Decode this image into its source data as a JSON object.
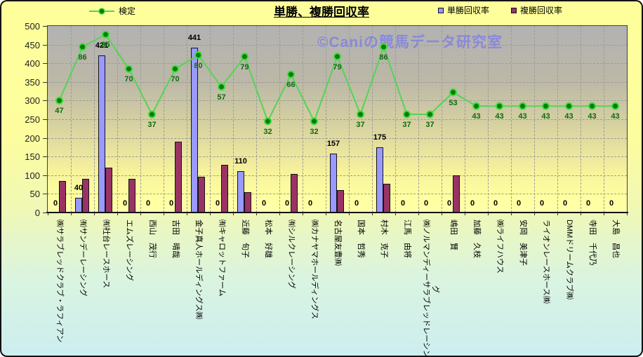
{
  "header": {
    "title": "単勝、複勝回収率",
    "legend_line_label": "検定",
    "legend_tansho_label": "単勝回収率",
    "legend_fukusho_label": "複勝回収率"
  },
  "watermark_text": "©Caniの競馬データ研究室",
  "colors": {
    "tansho_bar": "#9999ff",
    "fukusho_bar": "#993366",
    "kentei_line": "#55d455",
    "kentei_marker_fill": "#0a7d0a",
    "kentei_marker_ring": "#3ddd3d",
    "value_label": "#000000",
    "kentei_label": "#0e6b0e",
    "watermark": "#8080e0"
  },
  "chart_data": {
    "type": "bar",
    "title": "単勝、複勝回収率",
    "xlabel": "",
    "ylabel": "",
    "ylim": [
      0,
      500
    ],
    "ytick_step": 50,
    "grid": true,
    "legend_position": "top",
    "categories": [
      "㈱サラブレッドクラブ・ラフィアン",
      "㈲サンデーレーシング",
      "㈲社台レースホース",
      "エムズレーシング",
      "西山　茂行",
      "吉田　晴哉",
      "金子真人ホールディングス㈱",
      "㈲キャロットファーム",
      "近藤　旬子",
      "松本　好雄",
      "㈲シルクレーシング",
      "㈱カナヤマホールディングス",
      "名古屋友豊㈱",
      "国本　哲秀",
      "村木　克子",
      "江馬　由将",
      "㈱ノルマンディーサラブレッドレーシング",
      "嶋田　賢",
      "加藤　久枝",
      "㈱ライフハウス",
      "安岡　美津子",
      "ライオンレースホース㈱",
      "DMMドリームクラブ㈱",
      "寺田　千代乃",
      "大島　昌也"
    ],
    "category_wrap": {
      "16": [
        "㈱ノルマンディーサラブレッドレーシン",
        "グ"
      ]
    },
    "series": [
      {
        "name": "単勝回収率",
        "type": "bar",
        "color": "#9999ff",
        "labeled": true,
        "values": [
          0,
          40,
          421,
          0,
          0,
          0,
          441,
          0,
          110,
          0,
          0,
          0,
          157,
          0,
          175,
          0,
          0,
          0,
          0,
          0,
          0,
          0,
          0,
          0,
          0
        ]
      },
      {
        "name": "複勝回収率",
        "type": "bar",
        "color": "#993366",
        "labeled": false,
        "values": [
          85,
          90,
          120,
          90,
          0,
          190,
          95,
          128,
          55,
          0,
          103,
          0,
          60,
          0,
          78,
          0,
          0,
          100,
          0,
          0,
          0,
          0,
          0,
          0,
          0
        ]
      },
      {
        "name": "検定",
        "type": "line",
        "color": "#55d455",
        "labeled": true,
        "values": [
          47,
          86,
          95,
          70,
          37,
          70,
          80,
          57,
          79,
          32,
          66,
          32,
          79,
          37,
          86,
          37,
          37,
          53,
          43,
          43,
          43,
          43,
          43,
          43,
          43
        ]
      }
    ]
  }
}
